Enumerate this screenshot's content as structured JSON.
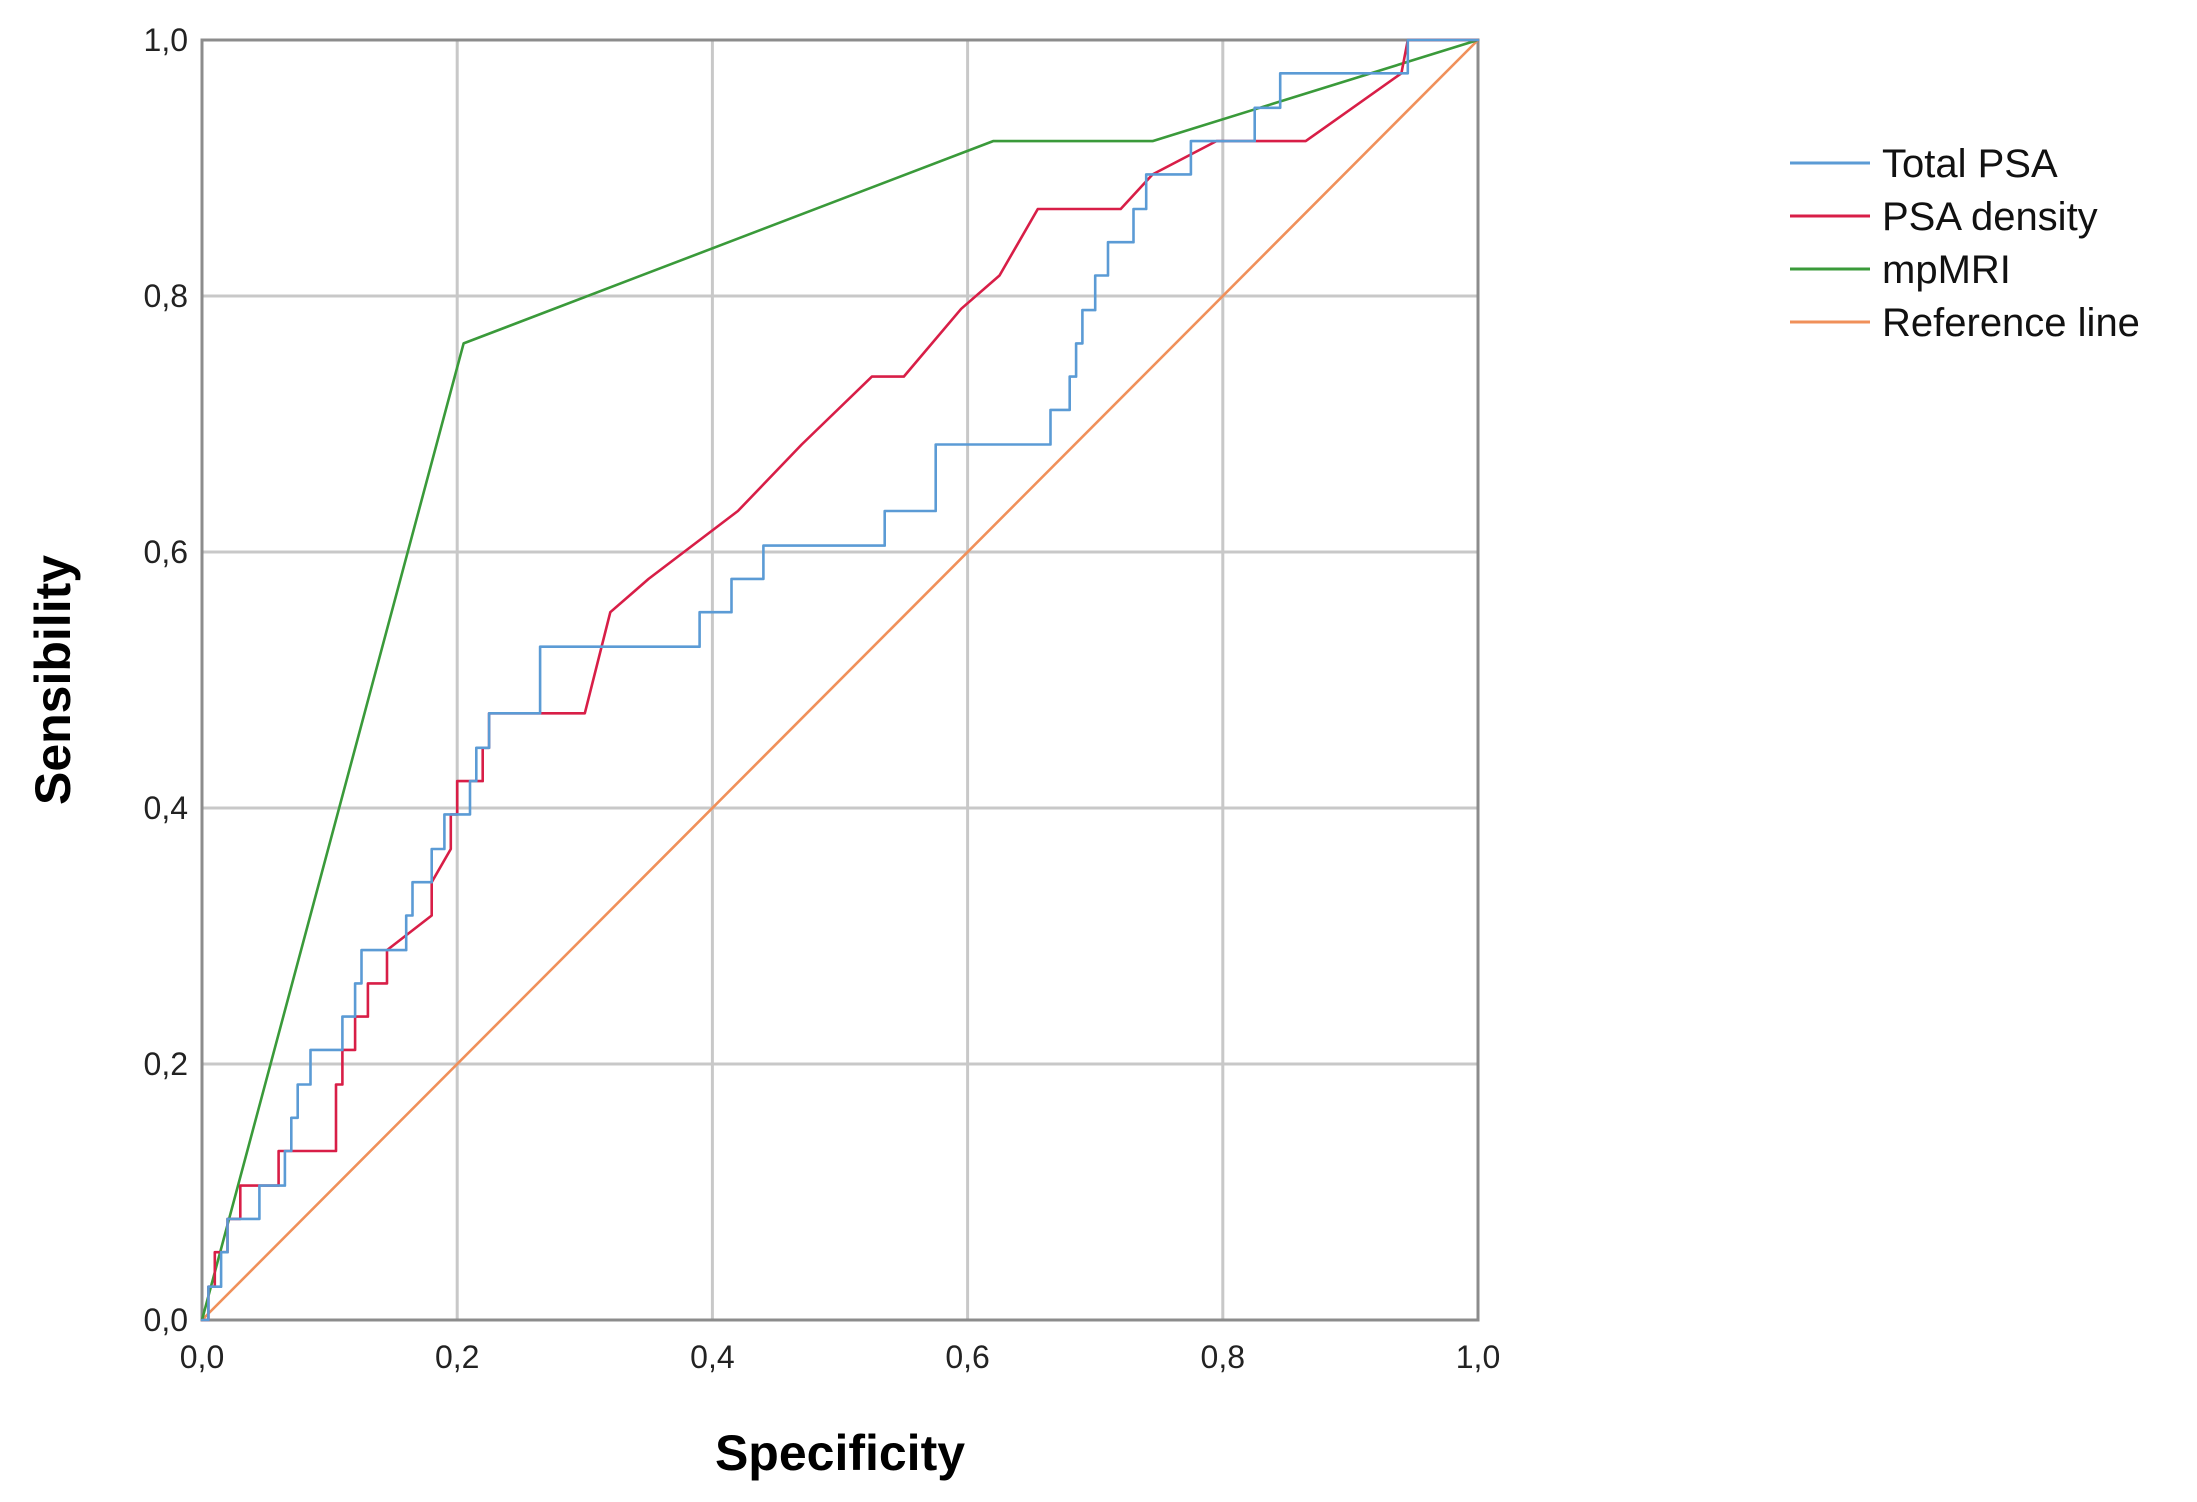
{
  "chart_data": {
    "type": "line",
    "xlabel": "Specificity",
    "ylabel": "Sensibility",
    "xlim": [
      0,
      1
    ],
    "ylim": [
      0,
      1
    ],
    "ticks": [
      "0,0",
      "0,2",
      "0,4",
      "0,6",
      "0,8",
      "1,0"
    ],
    "tick_values": [
      0,
      0.2,
      0.4,
      0.6,
      0.8,
      1.0
    ],
    "grid": true,
    "legend_position": "top-right, outside plot",
    "series": [
      {
        "name": "Total PSA",
        "color": "#5b9bd5",
        "x": [
          0,
          0.005,
          0.005,
          0.01,
          0.01,
          0.015,
          0.015,
          0.02,
          0.02,
          0.045,
          0.045,
          0.065,
          0.065,
          0.07,
          0.07,
          0.075,
          0.075,
          0.085,
          0.085,
          0.11,
          0.11,
          0.12,
          0.12,
          0.125,
          0.125,
          0.16,
          0.16,
          0.165,
          0.165,
          0.18,
          0.18,
          0.19,
          0.19,
          0.2,
          0.2,
          0.21,
          0.21,
          0.215,
          0.215,
          0.225,
          0.225,
          0.265,
          0.265,
          0.39,
          0.39,
          0.4,
          0.4,
          0.415,
          0.415,
          0.44,
          0.44,
          0.535,
          0.535,
          0.575,
          0.575,
          0.65,
          0.65,
          0.665,
          0.665,
          0.68,
          0.68,
          0.685,
          0.685,
          0.69,
          0.69,
          0.7,
          0.7,
          0.71,
          0.71,
          0.72,
          0.72,
          0.73,
          0.73,
          0.74,
          0.74,
          0.75,
          0.75,
          0.775,
          0.775,
          0.805,
          0.805,
          0.825,
          0.825,
          0.845,
          0.845,
          0.945,
          0.945,
          1.0
        ],
        "y": [
          0,
          0,
          0.026,
          0.026,
          0.026,
          0.026,
          0.053,
          0.053,
          0.079,
          0.079,
          0.105,
          0.105,
          0.132,
          0.132,
          0.158,
          0.158,
          0.184,
          0.184,
          0.211,
          0.211,
          0.237,
          0.237,
          0.263,
          0.263,
          0.289,
          0.289,
          0.316,
          0.316,
          0.342,
          0.342,
          0.368,
          0.368,
          0.395,
          0.395,
          0.395,
          0.395,
          0.421,
          0.421,
          0.447,
          0.447,
          0.474,
          0.474,
          0.526,
          0.526,
          0.553,
          0.553,
          0.553,
          0.553,
          0.579,
          0.579,
          0.605,
          0.605,
          0.632,
          0.632,
          0.684,
          0.684,
          0.684,
          0.684,
          0.711,
          0.711,
          0.737,
          0.737,
          0.763,
          0.763,
          0.789,
          0.789,
          0.816,
          0.816,
          0.842,
          0.842,
          0.842,
          0.842,
          0.868,
          0.868,
          0.895,
          0.895,
          0.895,
          0.895,
          0.921,
          0.921,
          0.921,
          0.921,
          0.947,
          0.947,
          0.974,
          0.974,
          1.0,
          1.0
        ]
      },
      {
        "name": "PSA density",
        "color": "#d81e47",
        "x": [
          0,
          0.005,
          0.005,
          0.01,
          0.01,
          0.02,
          0.02,
          0.03,
          0.03,
          0.045,
          0.045,
          0.06,
          0.06,
          0.075,
          0.075,
          0.105,
          0.105,
          0.11,
          0.11,
          0.12,
          0.12,
          0.13,
          0.13,
          0.145,
          0.145,
          0.18,
          0.18,
          0.195,
          0.195,
          0.2,
          0.2,
          0.22,
          0.22,
          0.225,
          0.225,
          0.3,
          0.32,
          0.35,
          0.42,
          0.47,
          0.525,
          0.55,
          0.595,
          0.625,
          0.655,
          0.72,
          0.745,
          0.795,
          0.865,
          0.94,
          0.945,
          1.0
        ],
        "y": [
          0,
          0,
          0.026,
          0.026,
          0.053,
          0.053,
          0.079,
          0.079,
          0.105,
          0.105,
          0.105,
          0.105,
          0.132,
          0.132,
          0.132,
          0.132,
          0.184,
          0.184,
          0.211,
          0.211,
          0.237,
          0.237,
          0.263,
          0.263,
          0.289,
          0.316,
          0.342,
          0.368,
          0.395,
          0.395,
          0.421,
          0.421,
          0.447,
          0.447,
          0.474,
          0.474,
          0.553,
          0.579,
          0.632,
          0.684,
          0.737,
          0.737,
          0.79,
          0.816,
          0.868,
          0.868,
          0.895,
          0.921,
          0.921,
          0.974,
          1.0,
          1.0
        ]
      },
      {
        "name": "mpMRI",
        "color": "#3a9a3a",
        "x": [
          0,
          0.205,
          0.62,
          0.745,
          1.0
        ],
        "y": [
          0,
          0.763,
          0.921,
          0.921,
          1.0
        ]
      },
      {
        "name": "Reference line",
        "color": "#f0905a",
        "x": [
          0,
          1
        ],
        "y": [
          0,
          1
        ]
      }
    ]
  }
}
